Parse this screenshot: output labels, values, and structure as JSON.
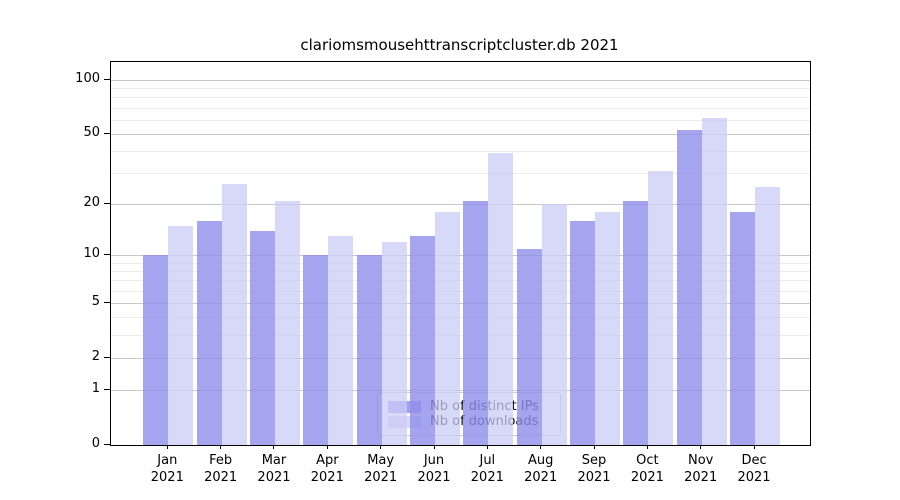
{
  "title": "clariomsmousehttranscriptcluster.db 2021",
  "chart_data": {
    "type": "bar",
    "title": "clariomsmousehttranscriptcluster.db 2021",
    "x_months": [
      "Jan",
      "Feb",
      "Mar",
      "Apr",
      "May",
      "Jun",
      "Jul",
      "Aug",
      "Sep",
      "Oct",
      "Nov",
      "Dec"
    ],
    "x_year": "2021",
    "categories": [
      "Jan 2021",
      "Feb 2021",
      "Mar 2021",
      "Apr 2021",
      "May 2021",
      "Jun 2021",
      "Jul 2021",
      "Aug 2021",
      "Sep 2021",
      "Oct 2021",
      "Nov 2021",
      "Dec 2021"
    ],
    "series": [
      {
        "name": "Nb of distinct IPs",
        "color": "#a0a0ee",
        "fill": "rgba(144,144,235,0.82)",
        "values": [
          10,
          16,
          14,
          10,
          10,
          13,
          21,
          11,
          16,
          21,
          53,
          18
        ]
      },
      {
        "name": "Nb of downloads",
        "color": "#d8d8f8",
        "fill": "rgba(203,203,247,0.75)",
        "values": [
          15,
          26,
          21,
          13,
          12,
          18,
          39,
          20,
          18,
          31,
          62,
          25
        ]
      }
    ],
    "y_scale": "log1p",
    "y_ticks": [
      100,
      50,
      20,
      10,
      5,
      2,
      1,
      0
    ],
    "y_minor_gridlines": [
      3,
      4,
      6,
      7,
      8,
      9,
      30,
      40,
      60,
      70,
      80,
      90
    ],
    "ylim": [
      0,
      115
    ],
    "grid": true,
    "legend_position": "inside-bottom-center",
    "colors": {
      "major_grid": "#c9c9c9",
      "minor_grid": "#ececec",
      "axis": "#000000"
    }
  }
}
